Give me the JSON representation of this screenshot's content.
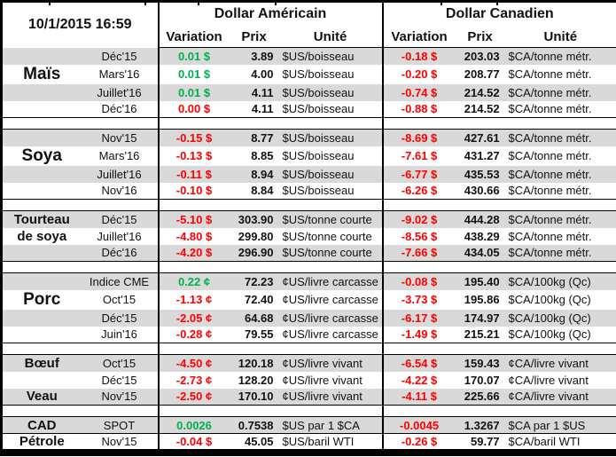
{
  "meta": {
    "timestamp": "10/1/2015 16:59"
  },
  "header": {
    "us_title": "Dollar Américain",
    "ca_title": "Dollar Canadien",
    "col_variation": "Variation",
    "col_prix": "Prix",
    "col_unite": "Unité"
  },
  "colors": {
    "positive": "#00B050",
    "negative": "#FF0000",
    "stripe": "#D9D9D9",
    "border": "#000000"
  },
  "groups": [
    {
      "name": "mais",
      "rows": [
        {
          "label": "",
          "label_style": "",
          "contract": "Déc'15",
          "us_var": "0.01 $",
          "us_dir": "pos",
          "us_prix": "3.89",
          "us_unit": "$US/boisseau",
          "ca_var": "-0.18 $",
          "ca_dir": "neg",
          "ca_prix": "203.03",
          "ca_unit": "$CA/tonne métr."
        },
        {
          "label": "Maïs",
          "label_style": "lg",
          "contract": "Mars'16",
          "us_var": "0.01 $",
          "us_dir": "pos",
          "us_prix": "4.00",
          "us_unit": "$US/boisseau",
          "ca_var": "-0.20 $",
          "ca_dir": "neg",
          "ca_prix": "208.77",
          "ca_unit": "$CA/tonne métr."
        },
        {
          "label": "",
          "label_style": "",
          "contract": "Juillet'16",
          "us_var": "0.01 $",
          "us_dir": "pos",
          "us_prix": "4.11",
          "us_unit": "$US/boisseau",
          "ca_var": "-0.74 $",
          "ca_dir": "neg",
          "ca_prix": "214.52",
          "ca_unit": "$CA/tonne métr."
        },
        {
          "label": "",
          "label_style": "",
          "contract": "Déc'16",
          "us_var": "0.00 $",
          "us_dir": "neg",
          "us_prix": "4.11",
          "us_unit": "$US/boisseau",
          "ca_var": "-0.88 $",
          "ca_dir": "neg",
          "ca_prix": "214.52",
          "ca_unit": "$CA/tonne métr."
        }
      ]
    },
    {
      "name": "soya",
      "rows": [
        {
          "label": "",
          "label_style": "",
          "contract": "Nov'15",
          "us_var": "-0.15 $",
          "us_dir": "neg",
          "us_prix": "8.77",
          "us_unit": "$US/boisseau",
          "ca_var": "-8.69 $",
          "ca_dir": "neg",
          "ca_prix": "427.61",
          "ca_unit": "$CA/tonne métr."
        },
        {
          "label": "Soya",
          "label_style": "lg",
          "contract": "Mars'16",
          "us_var": "-0.13 $",
          "us_dir": "neg",
          "us_prix": "8.85",
          "us_unit": "$US/boisseau",
          "ca_var": "-7.61 $",
          "ca_dir": "neg",
          "ca_prix": "431.27",
          "ca_unit": "$CA/tonne métr."
        },
        {
          "label": "",
          "label_style": "",
          "contract": "Juillet'16",
          "us_var": "-0.11 $",
          "us_dir": "neg",
          "us_prix": "8.94",
          "us_unit": "$US/boisseau",
          "ca_var": "-6.77 $",
          "ca_dir": "neg",
          "ca_prix": "435.53",
          "ca_unit": "$CA/tonne métr."
        },
        {
          "label": "",
          "label_style": "",
          "contract": "Nov'16",
          "us_var": "-0.10 $",
          "us_dir": "neg",
          "us_prix": "8.84",
          "us_unit": "$US/boisseau",
          "ca_var": "-6.26 $",
          "ca_dir": "neg",
          "ca_prix": "430.66",
          "ca_unit": "$CA/tonne métr."
        }
      ]
    },
    {
      "name": "tourteau-de-soya",
      "rows": [
        {
          "label": "Tourteau",
          "label_style": "sm",
          "contract": "Déc'15",
          "us_var": "-5.10 $",
          "us_dir": "neg",
          "us_prix": "303.90",
          "us_unit": "$US/tonne courte",
          "ca_var": "-9.02 $",
          "ca_dir": "neg",
          "ca_prix": "444.28",
          "ca_unit": "$CA/tonne métr."
        },
        {
          "label": "de soya",
          "label_style": "sm",
          "contract": "Juillet'16",
          "us_var": "-4.80 $",
          "us_dir": "neg",
          "us_prix": "299.80",
          "us_unit": "$US/tonne courte",
          "ca_var": "-8.56 $",
          "ca_dir": "neg",
          "ca_prix": "438.29",
          "ca_unit": "$CA/tonne métr."
        },
        {
          "label": "",
          "label_style": "",
          "contract": "Déc'16",
          "us_var": "-4.20 $",
          "us_dir": "neg",
          "us_prix": "296.90",
          "us_unit": "$US/tonne courte",
          "ca_var": "-7.66 $",
          "ca_dir": "neg",
          "ca_prix": "434.05",
          "ca_unit": "$CA/tonne métr."
        }
      ]
    },
    {
      "name": "porc",
      "rows": [
        {
          "label": "",
          "label_style": "",
          "contract": "Indice CME",
          "us_var": "0.22 ¢",
          "us_dir": "pos",
          "us_prix": "72.23",
          "us_unit": "¢US/livre carcasse",
          "ca_var": "-0.08 $",
          "ca_dir": "neg",
          "ca_prix": "195.40",
          "ca_unit": "$CA/100kg (Qc)"
        },
        {
          "label": "Porc",
          "label_style": "lg",
          "contract": "Oct'15",
          "us_var": "-1.13 ¢",
          "us_dir": "neg",
          "us_prix": "72.40",
          "us_unit": "¢US/livre carcasse",
          "ca_var": "-3.73 $",
          "ca_dir": "neg",
          "ca_prix": "195.86",
          "ca_unit": "$CA/100kg (Qc)"
        },
        {
          "label": "",
          "label_style": "",
          "contract": "Déc'15",
          "us_var": "-2.05 ¢",
          "us_dir": "neg",
          "us_prix": "64.68",
          "us_unit": "¢US/livre carcasse",
          "ca_var": "-6.17 $",
          "ca_dir": "neg",
          "ca_prix": "174.97",
          "ca_unit": "$CA/100kg (Qc)"
        },
        {
          "label": "",
          "label_style": "",
          "contract": "Juin'16",
          "us_var": "-0.28 ¢",
          "us_dir": "neg",
          "us_prix": "79.55",
          "us_unit": "¢US/livre carcasse",
          "ca_var": "-1.49 $",
          "ca_dir": "neg",
          "ca_prix": "215.21",
          "ca_unit": "$CA/100kg (Qc)"
        }
      ]
    },
    {
      "name": "boeuf-veau",
      "rows": [
        {
          "label": "Bœuf",
          "label_style": "sm",
          "contract": "Oct'15",
          "us_var": "-4.50 ¢",
          "us_dir": "neg",
          "us_prix": "120.18",
          "us_unit": "¢US/livre vivant",
          "ca_var": "-6.54 $",
          "ca_dir": "neg",
          "ca_prix": "159.43",
          "ca_unit": "¢CA/livre vivant"
        },
        {
          "label": "",
          "label_style": "",
          "contract": "Déc'15",
          "us_var": "-2.73 ¢",
          "us_dir": "neg",
          "us_prix": "128.20",
          "us_unit": "¢US/livre vivant",
          "ca_var": "-4.22 $",
          "ca_dir": "neg",
          "ca_prix": "170.07",
          "ca_unit": "¢CA/livre vivant"
        },
        {
          "label": "Veau",
          "label_style": "sm",
          "contract": "Nov'15",
          "us_var": "-2.50 ¢",
          "us_dir": "neg",
          "us_prix": "170.10",
          "us_unit": "¢US/livre vivant",
          "ca_var": "-4.11 $",
          "ca_dir": "neg",
          "ca_prix": "225.66",
          "ca_unit": "¢CA/livre vivant"
        }
      ]
    },
    {
      "name": "cad-petrole",
      "rows": [
        {
          "label": "CAD",
          "label_style": "sm",
          "contract": "SPOT",
          "us_var": "0.0026",
          "us_dir": "pos",
          "us_prix": "0.7538",
          "us_unit": "$US par 1 $CA",
          "ca_var": "-0.0045",
          "ca_dir": "neg",
          "ca_prix": "1.3267",
          "ca_unit": "$CA par 1 $US"
        },
        {
          "label": "Pétrole",
          "label_style": "sm",
          "divider_above": true,
          "contract": "Nov'15",
          "us_var": "-0.04 $",
          "us_dir": "neg",
          "us_prix": "45.05",
          "us_unit": "$US/baril WTI",
          "ca_var": "-0.26 $",
          "ca_dir": "neg",
          "ca_prix": "59.77",
          "ca_unit": "$CA/baril WTI"
        }
      ]
    }
  ]
}
